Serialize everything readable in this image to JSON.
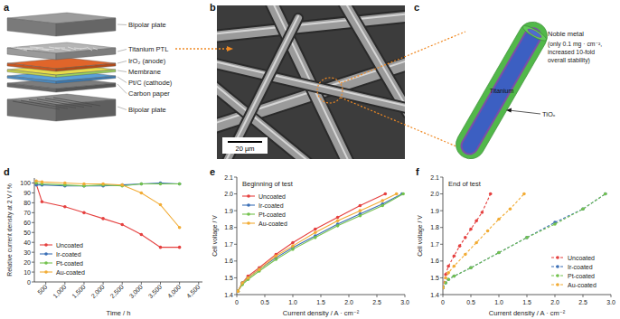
{
  "panel_letters": [
    "a",
    "b",
    "c",
    "d",
    "e",
    "f"
  ],
  "schematic": {
    "layers": [
      "Bipolar plate",
      "Titanium PTL",
      "IrO₂ (anode)",
      "Membrane",
      "Pt/C (cathode)",
      "Carbon paper",
      "Bipolar plate"
    ]
  },
  "micrograph": {
    "scale_bar": "20 µm"
  },
  "fiber": {
    "coating": "Noble metal",
    "note": [
      "(only 0.1 mg · cm⁻²,",
      "increased 10-fold",
      "overall stability)"
    ],
    "core": "Titanium",
    "oxide": "TiOₓ"
  },
  "chart_data": [
    {
      "type": "line",
      "xlabel": "Time / h",
      "ylabel": "Relative current density at 2 V / %",
      "x": [
        250,
        400,
        1000,
        1500,
        2000,
        2500,
        3000,
        3500,
        4000
      ],
      "xlim": [
        200,
        4600
      ],
      "xticks": [
        500,
        {
          "value": 1000,
          "label": "1,000"
        },
        {
          "value": 1500,
          "label": "1,500"
        },
        {
          "value": 2000,
          "label": "2,000"
        },
        {
          "value": 2500,
          "label": "2,500"
        },
        {
          "value": 3000,
          "label": "3,000"
        },
        {
          "value": 3500,
          "label": "3,500"
        },
        {
          "value": 4000,
          "label": "4,000"
        },
        {
          "value": 4500,
          "label": "4,500"
        }
      ],
      "ylim": [
        0,
        105
      ],
      "yticks": [
        0,
        10,
        20,
        30,
        40,
        50,
        60,
        70,
        80,
        90,
        100
      ],
      "grid": false,
      "legend": "lower left",
      "series": [
        {
          "name": "Uncoated",
          "color": "#e5403f",
          "marker": "circle",
          "line_style": "solid",
          "values": [
            99,
            81,
            76,
            70,
            64,
            58,
            48,
            35,
            35
          ]
        },
        {
          "name": "Ir-coated",
          "color": "#3b6fb6",
          "marker": "circle",
          "line_style": "solid",
          "values": [
            98,
            98,
            97,
            97,
            97,
            98,
            99,
            100,
            99
          ]
        },
        {
          "name": "Pt-coated",
          "color": "#74c24e",
          "marker": "circle",
          "line_style": "solid",
          "values": [
            100,
            99,
            98,
            97,
            98,
            97,
            99,
            99,
            99
          ]
        },
        {
          "name": "Au-coated",
          "color": "#f2ac35",
          "marker": "circle",
          "line_style": "solid",
          "values": [
            102,
            101,
            100,
            99,
            99,
            98,
            90,
            78,
            55
          ]
        }
      ]
    },
    {
      "type": "line",
      "title": "Beginning of test",
      "xlabel": "Current density / A · cm⁻²",
      "ylabel": "Cell voltage / V",
      "xlim": [
        0,
        3
      ],
      "xticks": [
        0,
        0.5,
        {
          "value": 1,
          "label": "1.0"
        },
        1.5,
        {
          "value": 2,
          "label": "2.0"
        },
        2.5,
        {
          "value": 3,
          "label": "3.0"
        }
      ],
      "ylim": [
        1.4,
        2.1
      ],
      "yticks": [
        1.4,
        1.5,
        1.6,
        1.7,
        1.8,
        1.9,
        {
          "value": 2,
          "label": "2.0"
        },
        2.1
      ],
      "grid": false,
      "legend": "upper left",
      "series": [
        {
          "name": "Uncoated",
          "color": "#e5403f",
          "marker": "circle",
          "line_style": "solid",
          "x": [
            0.02,
            0.1,
            0.2,
            0.4,
            0.7,
            1.0,
            1.4,
            1.8,
            2.2,
            2.65
          ],
          "values": [
            1.42,
            1.47,
            1.51,
            1.56,
            1.64,
            1.71,
            1.79,
            1.86,
            1.93,
            2.0
          ]
        },
        {
          "name": "Ir-coated",
          "color": "#3b6fb6",
          "marker": "circle",
          "line_style": "solid",
          "x": [
            0.02,
            0.1,
            0.2,
            0.4,
            0.7,
            1.0,
            1.4,
            1.8,
            2.2,
            2.6,
            2.95
          ],
          "values": [
            1.42,
            1.47,
            1.5,
            1.55,
            1.62,
            1.68,
            1.75,
            1.82,
            1.88,
            1.94,
            2.0
          ]
        },
        {
          "name": "Pt-coated",
          "color": "#74c24e",
          "marker": "circle",
          "line_style": "solid",
          "x": [
            0.02,
            0.1,
            0.2,
            0.4,
            0.7,
            1.0,
            1.4,
            1.8,
            2.2,
            2.6,
            2.97
          ],
          "values": [
            1.42,
            1.46,
            1.49,
            1.54,
            1.61,
            1.67,
            1.74,
            1.81,
            1.87,
            1.93,
            2.0
          ]
        },
        {
          "name": "Au-coated",
          "color": "#f2ac35",
          "marker": "circle",
          "line_style": "solid",
          "x": [
            0.02,
            0.1,
            0.2,
            0.4,
            0.7,
            1.0,
            1.4,
            1.8,
            2.2,
            2.6,
            2.85
          ],
          "values": [
            1.42,
            1.47,
            1.5,
            1.55,
            1.63,
            1.69,
            1.77,
            1.84,
            1.9,
            1.96,
            2.0
          ]
        }
      ]
    },
    {
      "type": "line",
      "title": "End of test",
      "xlabel": "Current density / A · cm⁻²",
      "ylabel": "Cell voltage / V",
      "xlim": [
        0,
        3
      ],
      "xticks": [
        0,
        0.5,
        {
          "value": 1,
          "label": "1.0"
        },
        1.5,
        {
          "value": 2,
          "label": "2.0"
        },
        2.5,
        {
          "value": 3,
          "label": "3.0"
        }
      ],
      "ylim": [
        1.4,
        2.1
      ],
      "yticks": [
        1.4,
        1.5,
        1.6,
        1.7,
        1.8,
        1.9,
        {
          "value": 2,
          "label": "2.0"
        },
        2.1
      ],
      "grid": false,
      "legend": "lower right",
      "series": [
        {
          "name": "Uncoated",
          "color": "#e5403f",
          "marker": "circle",
          "line_style": "dashed",
          "x": [
            0,
            0.05,
            0.1,
            0.2,
            0.3,
            0.4,
            0.5,
            0.6,
            0.7,
            0.85
          ],
          "values": [
            1.44,
            1.52,
            1.57,
            1.63,
            1.69,
            1.74,
            1.79,
            1.84,
            1.89,
            2.0
          ]
        },
        {
          "name": "Ir-coated",
          "color": "#3b6fb6",
          "marker": "circle",
          "line_style": "dashed",
          "x": [
            0,
            0.05,
            0.1,
            0.2,
            0.5,
            1.0,
            1.5,
            2.0,
            2.5,
            2.9
          ],
          "values": [
            1.44,
            1.47,
            1.49,
            1.51,
            1.56,
            1.65,
            1.74,
            1.83,
            1.91,
            2.0
          ]
        },
        {
          "name": "Pt-coated",
          "color": "#74c24e",
          "marker": "circle",
          "line_style": "dashed",
          "x": [
            0,
            0.05,
            0.1,
            0.2,
            0.5,
            1.0,
            1.5,
            2.0,
            2.5,
            2.9
          ],
          "values": [
            1.44,
            1.47,
            1.49,
            1.51,
            1.56,
            1.65,
            1.74,
            1.82,
            1.91,
            2.0
          ]
        },
        {
          "name": "Au-coated",
          "color": "#f2ac35",
          "marker": "circle",
          "line_style": "dashed",
          "x": [
            0,
            0.05,
            0.1,
            0.2,
            0.4,
            0.6,
            0.8,
            1.0,
            1.2,
            1.45
          ],
          "values": [
            1.44,
            1.5,
            1.53,
            1.57,
            1.64,
            1.71,
            1.78,
            1.85,
            1.91,
            2.0
          ]
        }
      ]
    }
  ]
}
